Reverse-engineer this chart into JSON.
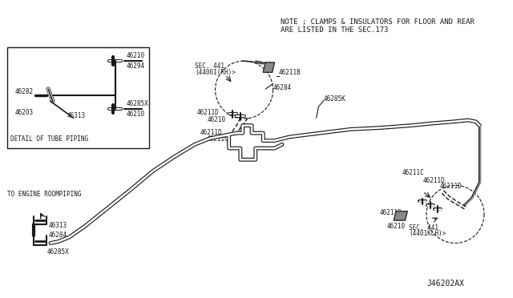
{
  "bg_color": "#ffffff",
  "line_color": "#1a1a1a",
  "note_text1": "NOTE ; CLAMPS & INSULATORS FOR FLOOR AND REAR",
  "note_text2": "ARE LISTED IN THE SEC.173",
  "diagram_id": "J46202AX",
  "detail_box_label": "DETAIL OF TUBE PIPING",
  "to_engine_label": "TO ENGINE ROOMPIPING",
  "fig_w": 6.4,
  "fig_h": 3.72,
  "dpi": 100
}
